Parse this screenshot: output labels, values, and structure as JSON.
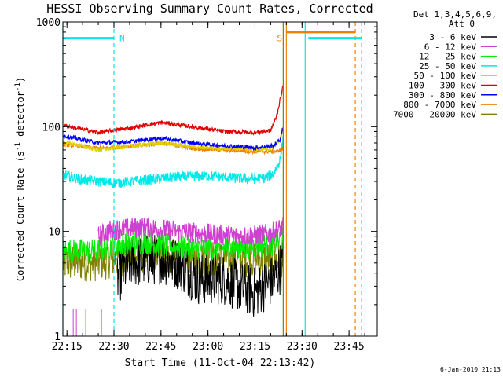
{
  "chart_data": {
    "type": "line",
    "title": "HESSI Observing Summary Count Rates, Corrected",
    "xlabel": "Start Time (11-Oct-04 22:13:42)",
    "ylabel_main": "Corrected Count Rate (s",
    "ylabel_sup1": "-1",
    "ylabel_mid": " detector",
    "ylabel_sup2": "-1",
    "ylabel_end": ")",
    "yscale": "log",
    "ylim": [
      1,
      1000
    ],
    "xlim": [
      "22:13:42",
      "23:54:00"
    ],
    "x_ticks": [
      "22:15",
      "22:30",
      "22:45",
      "23:00",
      "23:15",
      "23:30",
      "23:45"
    ],
    "y_ticks": [
      "1",
      "10",
      "100",
      "1000"
    ],
    "legend": {
      "placement": "right",
      "header_line1": "Det 1,3,4,5,6,9,",
      "header_line2": "Att 0",
      "entries": [
        {
          "label": "3 - 6 keV",
          "color": "#000000"
        },
        {
          "label": "6 - 12 keV",
          "color": "#d040d0"
        },
        {
          "label": "12 - 25 keV",
          "color": "#00ee00"
        },
        {
          "label": "25 - 50 keV",
          "color": "#00e8e8"
        },
        {
          "label": "50 - 100 keV",
          "color": "#e0d000"
        },
        {
          "label": "100 - 300 keV",
          "color": "#e00000"
        },
        {
          "label": "300 - 800 keV",
          "color": "#0000ff"
        },
        {
          "label": "800 - 7000 keV",
          "color": "#f08000"
        },
        {
          "label": "7000 - 20000 keV",
          "color": "#808000"
        }
      ]
    },
    "series": [
      {
        "name": "3 - 6 keV",
        "color": "#000000",
        "noise": 0.25,
        "points": [
          [
            "22:31",
            3.5
          ],
          [
            "22:35",
            5
          ],
          [
            "22:45",
            5.5
          ],
          [
            "22:50",
            5
          ],
          [
            "22:57",
            3.5
          ],
          [
            "23:05",
            3.5
          ],
          [
            "23:10",
            3.0
          ],
          [
            "23:15",
            2.6
          ],
          [
            "23:21",
            3.5
          ],
          [
            "23:24",
            5
          ]
        ]
      },
      {
        "name": "6 - 12 keV",
        "color": "#d040d0",
        "noise": 0.1,
        "points": [
          [
            "22:25",
            9
          ],
          [
            "22:30",
            10.5
          ],
          [
            "22:40",
            11
          ],
          [
            "22:50",
            10
          ],
          [
            "23:00",
            9.5
          ],
          [
            "23:10",
            9
          ],
          [
            "23:20",
            9.5
          ],
          [
            "23:24",
            11
          ]
        ]
      },
      {
        "name": "12 - 25 keV",
        "color": "#00ee00",
        "noise": 0.12,
        "points": [
          [
            "22:13:42",
            6.5
          ],
          [
            "22:25",
            6.5
          ],
          [
            "22:30",
            7.5
          ],
          [
            "22:40",
            8
          ],
          [
            "22:50",
            7
          ],
          [
            "23:00",
            7
          ],
          [
            "23:10",
            7
          ],
          [
            "23:20",
            7.5
          ],
          [
            "23:24",
            8.5
          ]
        ]
      },
      {
        "name": "25 - 50 keV",
        "color": "#00e8e8",
        "noise": 0.05,
        "points": [
          [
            "22:13:42",
            35
          ],
          [
            "22:20",
            31
          ],
          [
            "22:30",
            29
          ],
          [
            "22:40",
            31
          ],
          [
            "22:50",
            33
          ],
          [
            "23:00",
            34
          ],
          [
            "23:10",
            32
          ],
          [
            "23:18",
            32
          ],
          [
            "23:21",
            36
          ],
          [
            "23:23",
            48
          ],
          [
            "23:24",
            80
          ]
        ]
      },
      {
        "name": "50 - 100 keV",
        "color": "#e0d000",
        "noise": 0.02,
        "points": [
          [
            "22:13:42",
            72
          ],
          [
            "22:25",
            60
          ],
          [
            "22:35",
            65
          ],
          [
            "22:45",
            70
          ],
          [
            "22:55",
            64
          ],
          [
            "23:05",
            62
          ],
          [
            "23:15",
            61
          ],
          [
            "23:20",
            62
          ],
          [
            "23:23",
            75
          ],
          [
            "23:24",
            100
          ]
        ]
      },
      {
        "name": "100 - 300 keV",
        "color": "#e00000",
        "noise": 0.02,
        "points": [
          [
            "22:13:42",
            103
          ],
          [
            "22:25",
            88
          ],
          [
            "22:35",
            97
          ],
          [
            "22:45",
            110
          ],
          [
            "22:55",
            100
          ],
          [
            "23:05",
            90
          ],
          [
            "23:15",
            88
          ],
          [
            "23:20",
            92
          ],
          [
            "23:22",
            130
          ],
          [
            "23:23",
            180
          ],
          [
            "23:24",
            250
          ]
        ]
      },
      {
        "name": "300 - 800 keV",
        "color": "#0000ff",
        "noise": 0.02,
        "points": [
          [
            "22:13:42",
            82
          ],
          [
            "22:25",
            70
          ],
          [
            "22:35",
            72
          ],
          [
            "22:45",
            78
          ],
          [
            "22:55",
            70
          ],
          [
            "23:05",
            66
          ],
          [
            "23:15",
            63
          ],
          [
            "23:21",
            66
          ],
          [
            "23:23",
            75
          ],
          [
            "23:24",
            100
          ]
        ]
      },
      {
        "name": "800 - 7000 keV",
        "color": "#f08000",
        "noise": 0.02,
        "points": [
          [
            "22:13:42",
            68
          ],
          [
            "22:25",
            62
          ],
          [
            "22:35",
            65
          ],
          [
            "22:45",
            70
          ],
          [
            "22:55",
            62
          ],
          [
            "23:05",
            60
          ],
          [
            "23:15",
            58
          ],
          [
            "23:22",
            58
          ],
          [
            "23:24",
            62
          ]
        ]
      },
      {
        "name": "7000 - 20000 keV",
        "color": "#808000",
        "noise": 0.18,
        "points": [
          [
            "22:13:42",
            5
          ],
          [
            "22:25",
            5
          ],
          [
            "22:30",
            5.5
          ],
          [
            "22:40",
            6
          ],
          [
            "22:50",
            5.5
          ],
          [
            "23:00",
            5.5
          ],
          [
            "23:10",
            5.5
          ],
          [
            "23:20",
            5.5
          ],
          [
            "23:24",
            5.5
          ]
        ]
      }
    ],
    "flag_bars": [
      {
        "label": "N",
        "color": "#00e8e8",
        "value": 700,
        "segments": [
          [
            "22:13:42",
            "22:30"
          ],
          [
            "23:32",
            "23:49"
          ]
        ]
      },
      {
        "label": "S",
        "color": "#f08000",
        "value": 800,
        "segments": [
          [
            "23:25",
            "23:47"
          ]
        ]
      }
    ],
    "vertical_lines": [
      {
        "time": "22:13:42",
        "color": "#00e8e8",
        "style": "solid"
      },
      {
        "time": "22:30",
        "color": "#00e8e8",
        "style": "dashed"
      },
      {
        "time": "23:24",
        "color": "#808000",
        "style": "solid"
      },
      {
        "time": "23:25",
        "color": "#f08000",
        "style": "solid"
      },
      {
        "time": "23:31",
        "color": "#00e8e8",
        "style": "solid"
      },
      {
        "time": "23:47",
        "color": "#f08000",
        "style": "dashed"
      },
      {
        "time": "23:49",
        "color": "#00e8e8",
        "style": "dashed"
      }
    ]
  },
  "timestamp": "6-Jan-2010 21:13"
}
